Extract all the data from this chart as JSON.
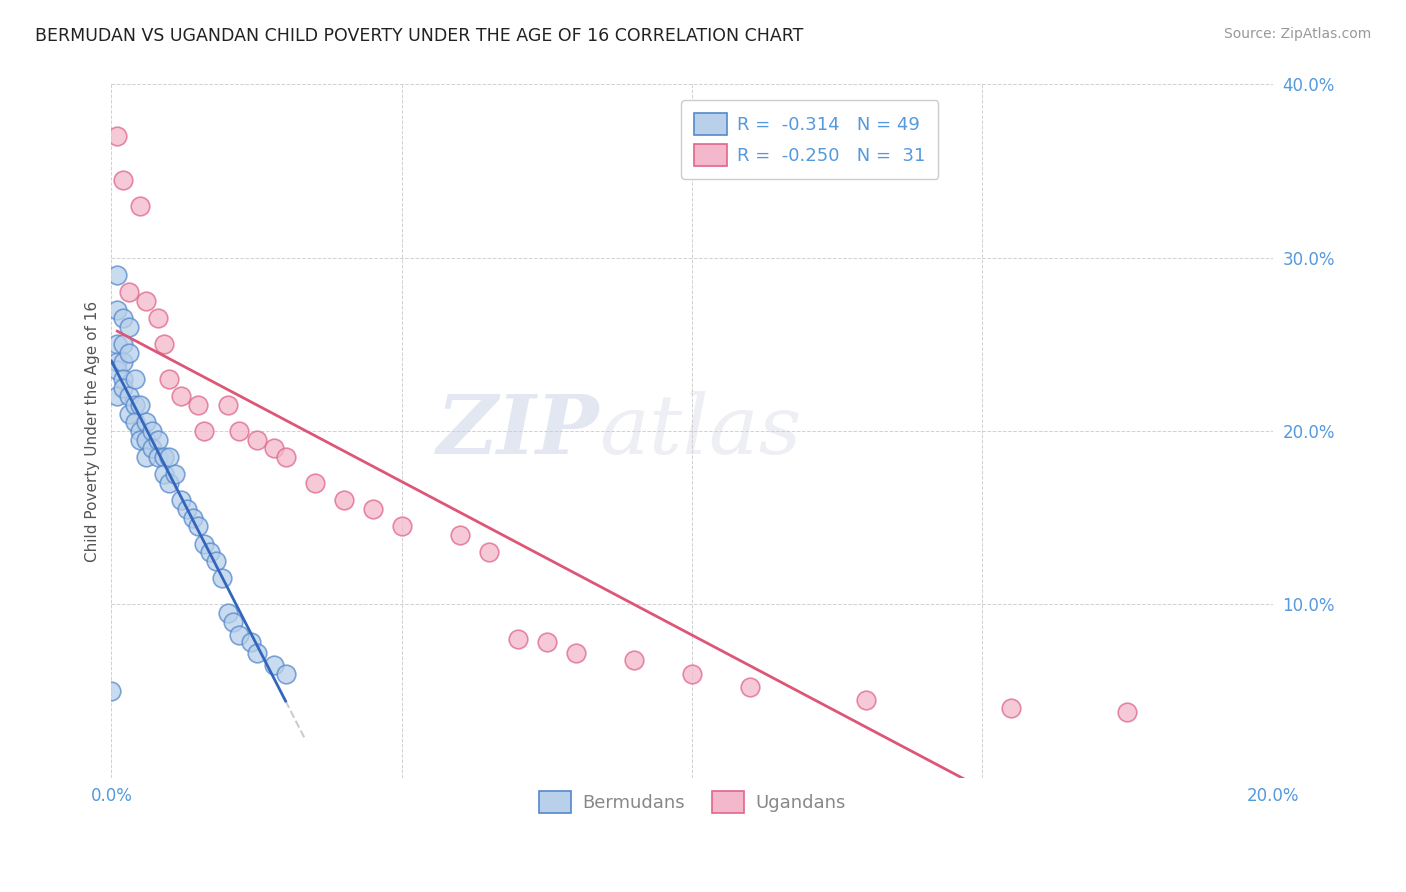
{
  "title": "BERMUDAN VS UGANDAN CHILD POVERTY UNDER THE AGE OF 16 CORRELATION CHART",
  "source": "Source: ZipAtlas.com",
  "ylabel": "Child Poverty Under the Age of 16",
  "watermark_zip": "ZIP",
  "watermark_atlas": "atlas",
  "xlim": [
    0.0,
    0.2
  ],
  "ylim": [
    0.0,
    0.4
  ],
  "xticks": [
    0.0,
    0.05,
    0.1,
    0.15,
    0.2
  ],
  "yticks": [
    0.0,
    0.1,
    0.2,
    0.3,
    0.4
  ],
  "legend_blue_r": "-0.314",
  "legend_blue_n": "49",
  "legend_pink_r": "-0.250",
  "legend_pink_n": "31",
  "legend_blue_label": "Bermudans",
  "legend_pink_label": "Ugandans",
  "blue_fill": "#b8d0ea",
  "pink_fill": "#f4b8cc",
  "blue_edge": "#5588cc",
  "pink_edge": "#e06688",
  "line_blue": "#3366bb",
  "line_pink": "#dd5577",
  "line_dashed_color": "#cccccc",
  "bermudans_x": [
    0.0,
    0.001,
    0.001,
    0.001,
    0.001,
    0.001,
    0.001,
    0.002,
    0.002,
    0.002,
    0.002,
    0.002,
    0.003,
    0.003,
    0.003,
    0.003,
    0.004,
    0.004,
    0.004,
    0.005,
    0.005,
    0.005,
    0.006,
    0.006,
    0.006,
    0.007,
    0.007,
    0.008,
    0.008,
    0.009,
    0.009,
    0.01,
    0.01,
    0.011,
    0.012,
    0.013,
    0.014,
    0.015,
    0.016,
    0.017,
    0.018,
    0.019,
    0.02,
    0.021,
    0.022,
    0.024,
    0.025,
    0.028,
    0.03
  ],
  "bermudans_y": [
    0.05,
    0.29,
    0.27,
    0.25,
    0.24,
    0.235,
    0.22,
    0.265,
    0.25,
    0.24,
    0.23,
    0.225,
    0.26,
    0.245,
    0.22,
    0.21,
    0.23,
    0.215,
    0.205,
    0.215,
    0.2,
    0.195,
    0.205,
    0.195,
    0.185,
    0.2,
    0.19,
    0.195,
    0.185,
    0.185,
    0.175,
    0.185,
    0.17,
    0.175,
    0.16,
    0.155,
    0.15,
    0.145,
    0.135,
    0.13,
    0.125,
    0.115,
    0.095,
    0.09,
    0.082,
    0.078,
    0.072,
    0.065,
    0.06
  ],
  "ugandans_x": [
    0.001,
    0.002,
    0.003,
    0.005,
    0.006,
    0.008,
    0.009,
    0.01,
    0.012,
    0.015,
    0.016,
    0.02,
    0.022,
    0.025,
    0.028,
    0.03,
    0.035,
    0.04,
    0.045,
    0.05,
    0.06,
    0.065,
    0.07,
    0.075,
    0.08,
    0.09,
    0.1,
    0.11,
    0.13,
    0.155,
    0.175
  ],
  "ugandans_y": [
    0.37,
    0.345,
    0.28,
    0.33,
    0.275,
    0.265,
    0.25,
    0.23,
    0.22,
    0.215,
    0.2,
    0.215,
    0.2,
    0.195,
    0.19,
    0.185,
    0.17,
    0.16,
    0.155,
    0.145,
    0.14,
    0.13,
    0.08,
    0.078,
    0.072,
    0.068,
    0.06,
    0.052,
    0.045,
    0.04,
    0.038
  ]
}
